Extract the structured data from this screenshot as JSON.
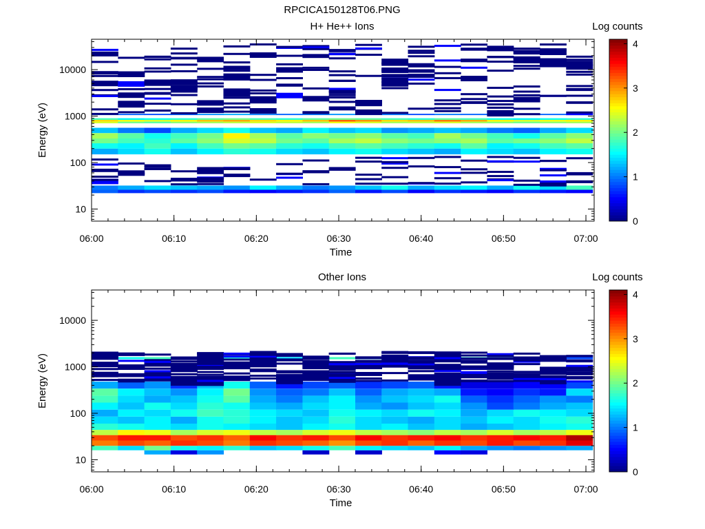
{
  "figure_title": "RPCICA150128T06.PNG",
  "colorscale": [
    "#00007f",
    "#0000ff",
    "#0080ff",
    "#00ffff",
    "#80ff80",
    "#ffff00",
    "#ff8000",
    "#ff0000",
    "#7f0000"
  ],
  "chart_data": [
    {
      "type": "heatmap",
      "title": "H+ He++ Ions",
      "xlabel": "Time",
      "ylabel": "Energy (eV)",
      "yscale": "log",
      "ylim": [
        5.5,
        45000
      ],
      "xlim": [
        "06:00",
        "07:01"
      ],
      "x_ticks": [
        "06:00",
        "06:10",
        "06:20",
        "06:30",
        "06:40",
        "06:50",
        "07:00"
      ],
      "y_ticks": [
        10,
        100,
        1000,
        10000
      ],
      "y_tick_labels": [
        "10",
        "100",
        "1000",
        "10000"
      ],
      "colorbar": {
        "label": "Log counts",
        "range": [
          0,
          4.1
        ],
        "ticks": [
          0,
          1,
          2,
          3,
          4
        ]
      },
      "time_bins": [
        "06:00:00",
        "06:03:12",
        "06:06:24",
        "06:09:36",
        "06:12:48",
        "06:16:00",
        "06:19:12",
        "06:22:24",
        "06:25:36",
        "06:28:48",
        "06:32:00",
        "06:35:12",
        "06:38:24",
        "06:41:36",
        "06:44:48",
        "06:48:00",
        "06:51:12",
        "06:54:24",
        "06:57:36"
      ],
      "bands": [
        {
          "e": [
            22,
            26
          ],
          "v": [
            0.9,
            0.7,
            0.8,
            0.7,
            0.8,
            0.6,
            0.5,
            0.6,
            0.7,
            0.9,
            0.6,
            0.8,
            0.5,
            0.7,
            0.6,
            0.5,
            0.7,
            0.6,
            0.5
          ]
        },
        {
          "e": [
            26,
            32
          ],
          "v": [
            1.0,
            1.2,
            1.4,
            1.3,
            1.2,
            1.1,
            1.5,
            1.2,
            1.0,
            1.1,
            1.3,
            1.6,
            1.2,
            1.4,
            1.5,
            1.2,
            1.6,
            1.4,
            1.8
          ]
        },
        {
          "e": [
            150,
            200
          ],
          "v": [
            1.2,
            1.4,
            1.6,
            1.3,
            1.5,
            1.7,
            1.6,
            1.4,
            1.3,
            1.5,
            1.6,
            1.4,
            1.3,
            1.2,
            1.5,
            1.4,
            1.3,
            1.5,
            1.6
          ]
        },
        {
          "e": [
            200,
            260
          ],
          "v": [
            1.6,
            1.5,
            1.8,
            1.5,
            1.8,
            2.0,
            1.9,
            1.7,
            1.6,
            1.8,
            1.9,
            1.8,
            1.7,
            1.6,
            1.9,
            1.5,
            1.6,
            1.8,
            1.9
          ]
        },
        {
          "e": [
            260,
            330
          ],
          "v": [
            2.0,
            1.8,
            1.7,
            1.9,
            2.1,
            2.4,
            2.3,
            2.0,
            1.9,
            2.2,
            2.3,
            2.1,
            2.0,
            2.1,
            2.2,
            1.9,
            2.0,
            2.1,
            2.3
          ]
        },
        {
          "e": [
            330,
            430
          ],
          "v": [
            2.2,
            1.9,
            1.6,
            1.8,
            2.0,
            2.6,
            2.2,
            1.9,
            2.1,
            2.0,
            2.1,
            1.9,
            1.8,
            2.2,
            2.0,
            1.8,
            1.6,
            1.9,
            2.1
          ]
        },
        {
          "e": [
            430,
            560
          ],
          "v": [
            1.3,
            1.0,
            0.8,
            1.2,
            1.4,
            1.6,
            1.3,
            1.2,
            1.5,
            1.3,
            1.4,
            1.1,
            1.2,
            1.3,
            1.2,
            1.0,
            0.9,
            1.2,
            1.4
          ]
        },
        {
          "e": [
            700,
            760
          ],
          "v": [
            2.4,
            2.0,
            1.9,
            2.1,
            2.2,
            2.3,
            2.4,
            2.3,
            2.2,
            2.5,
            2.4,
            2.2,
            2.3,
            2.4,
            2.2,
            2.1,
            2.0,
            2.1,
            2.2
          ]
        },
        {
          "e": [
            760,
            830
          ],
          "v": [
            2.7,
            2.5,
            2.4,
            2.6,
            2.8,
            2.9,
            2.7,
            2.6,
            2.8,
            3.2,
            3.0,
            2.7,
            2.8,
            3.1,
            2.9,
            2.6,
            2.4,
            2.5,
            2.6
          ]
        },
        {
          "e": [
            830,
            900
          ],
          "v": [
            1.8,
            1.5,
            1.6,
            1.7,
            1.9,
            2.0,
            1.8,
            1.7,
            1.9,
            2.0,
            1.9,
            1.8,
            1.7,
            1.9,
            1.8,
            1.6,
            1.5,
            1.6,
            1.7
          ]
        },
        {
          "e": [
            1050,
            1120
          ],
          "v": [
            1.0,
            0.9,
            0.8,
            0.9,
            1.1,
            1.2,
            1.0,
            0.9,
            1.0,
            1.1,
            0.9,
            1.0,
            0.8,
            1.0,
            0.9,
            0.8,
            0.7,
            0.9,
            1.0
          ]
        }
      ],
      "sparse_lines": 26
    },
    {
      "type": "heatmap",
      "title": "Other Ions",
      "xlabel": "Time",
      "ylabel": "Energy (eV)",
      "yscale": "log",
      "ylim": [
        5.5,
        45000
      ],
      "xlim": [
        "06:00",
        "07:01"
      ],
      "x_ticks": [
        "06:00",
        "06:10",
        "06:20",
        "06:30",
        "06:40",
        "06:50",
        "07:00"
      ],
      "y_ticks": [
        10,
        100,
        1000,
        10000
      ],
      "y_tick_labels": [
        "10",
        "100",
        "1000",
        "10000"
      ],
      "colorbar": {
        "label": "Log counts",
        "range": [
          0,
          4.1
        ],
        "ticks": [
          0,
          1,
          2,
          3,
          4
        ]
      },
      "time_bins": [
        "06:00:00",
        "06:03:12",
        "06:06:24",
        "06:09:36",
        "06:12:48",
        "06:16:00",
        "06:19:12",
        "06:22:24",
        "06:25:36",
        "06:28:48",
        "06:32:00",
        "06:35:12",
        "06:38:24",
        "06:41:36",
        "06:44:48",
        "06:48:00",
        "06:51:12",
        "06:54:24",
        "06:57:36"
      ],
      "bands": [
        {
          "e": [
            13,
            16
          ],
          "v": [
            null,
            null,
            1.2,
            0.4,
            1.1,
            null,
            null,
            null,
            0.3,
            null,
            0.3,
            null,
            null,
            0.5,
            0.4,
            null,
            null,
            null,
            null
          ]
        },
        {
          "e": [
            16,
            20
          ],
          "v": [
            1.8,
            1.4,
            2.0,
            1.6,
            1.5,
            1.7,
            1.3,
            1.4,
            1.6,
            1.8,
            1.5,
            1.4,
            1.3,
            1.5,
            1.2,
            1.1,
            1.0,
            1.1,
            1.2
          ]
        },
        {
          "e": [
            20,
            26
          ],
          "v": [
            3.1,
            3.3,
            3.2,
            3.4,
            3.3,
            3.1,
            3.4,
            3.3,
            3.2,
            3.0,
            3.3,
            3.4,
            3.2,
            3.4,
            3.3,
            3.5,
            3.3,
            3.4,
            3.7
          ]
        },
        {
          "e": [
            26,
            34
          ],
          "v": [
            3.3,
            3.5,
            3.5,
            3.3,
            3.4,
            3.2,
            3.6,
            3.4,
            3.5,
            3.3,
            3.6,
            3.4,
            3.5,
            3.6,
            3.4,
            3.5,
            3.6,
            3.5,
            3.9
          ]
        },
        {
          "e": [
            34,
            44
          ],
          "v": [
            2.3,
            2.6,
            2.5,
            2.2,
            2.4,
            2.5,
            2.3,
            2.2,
            2.4,
            2.5,
            2.3,
            2.2,
            2.1,
            2.3,
            2.2,
            2.4,
            2.2,
            2.3,
            2.5
          ]
        },
        {
          "e": [
            44,
            60
          ],
          "v": [
            1.7,
            1.6,
            1.5,
            1.4,
            1.6,
            1.5,
            1.4,
            1.3,
            1.5,
            1.6,
            1.4,
            1.5,
            1.3,
            1.4,
            1.2,
            1.3,
            1.4,
            1.5,
            1.6
          ]
        },
        {
          "e": [
            60,
            85
          ],
          "v": [
            1.4,
            1.3,
            1.5,
            1.2,
            1.6,
            1.7,
            1.5,
            1.3,
            1.4,
            1.7,
            1.4,
            1.3,
            1.2,
            1.4,
            1.3,
            1.5,
            1.4,
            1.6,
            1.7
          ]
        },
        {
          "e": [
            85,
            120
          ],
          "v": [
            1.2,
            1.5,
            1.4,
            1.6,
            1.8,
            1.7,
            1.5,
            1.4,
            1.3,
            1.6,
            1.5,
            1.4,
            1.6,
            1.5,
            1.2,
            1.4,
            1.6,
            1.5,
            1.4
          ]
        },
        {
          "e": [
            120,
            170
          ],
          "v": [
            1.5,
            1.3,
            1.6,
            1.4,
            1.7,
            1.6,
            1.3,
            1.2,
            1.4,
            1.5,
            1.2,
            1.1,
            1.3,
            1.4,
            1.1,
            0.8,
            1.0,
            1.2,
            1.3
          ]
        },
        {
          "e": [
            170,
            240
          ],
          "v": [
            1.8,
            1.4,
            1.2,
            1.3,
            1.6,
            1.9,
            1.2,
            1.0,
            1.3,
            1.5,
            1.1,
            1.3,
            1.4,
            1.6,
            0.9,
            0.7,
            0.9,
            1.1,
            1.0
          ]
        },
        {
          "e": [
            240,
            340
          ],
          "v": [
            1.9,
            1.5,
            1.3,
            1.1,
            1.5,
            2.0,
            1.1,
            0.9,
            1.0,
            1.3,
            0.9,
            1.2,
            1.3,
            1.2,
            0.6,
            0.5,
            0.7,
            0.6,
            1.4
          ]
        },
        {
          "e": [
            340,
            480
          ],
          "v": [
            1.2,
            0.9,
            1.1,
            0.7,
            1.3,
            1.6,
            0.9,
            0.6,
            0.8,
            0.9,
            0.7,
            0.8,
            0.9,
            0.6,
            0.4,
            0.4,
            0.5,
            0.5,
            0.8
          ]
        },
        {
          "e": [
            1450,
            1620
          ],
          "v": [
            1.3,
            1.6,
            1.8,
            1.4,
            1.6,
            1.7,
            1.5,
            1.4,
            1.3,
            1.8,
            1.7,
            1.6,
            1.5,
            1.9,
            1.8,
            1.7,
            1.5,
            0.9,
            0.8
          ]
        }
      ],
      "sparse_lines": 16
    }
  ]
}
